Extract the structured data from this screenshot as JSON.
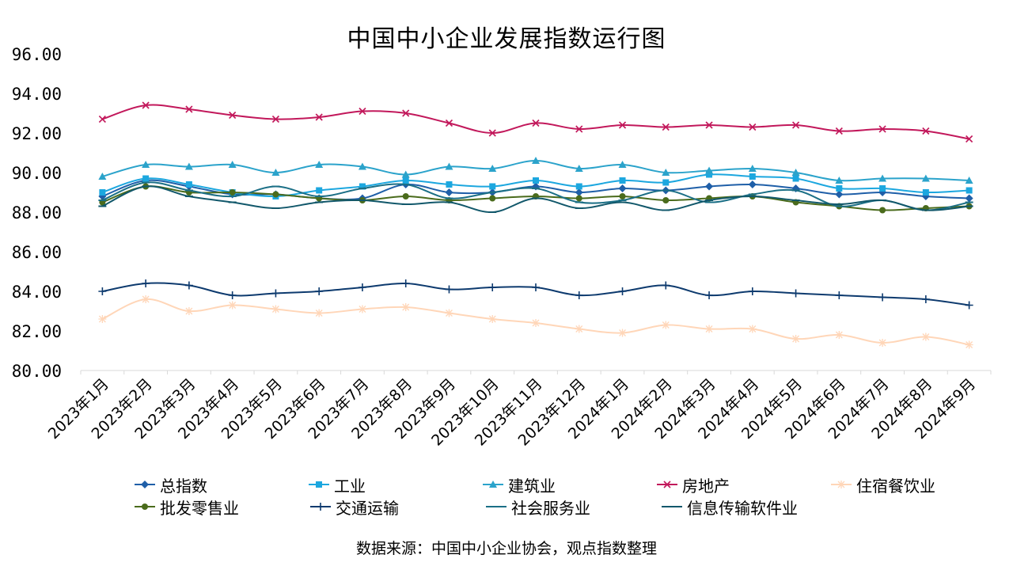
{
  "chart_data": {
    "type": "line",
    "title": "中国中小企业发展指数运行图",
    "source": "数据来源：中国中小企业协会，观点指数整理",
    "xlabel": "",
    "ylabel": "",
    "ylim": [
      80,
      96
    ],
    "yticks": [
      "80.00",
      "82.00",
      "84.00",
      "86.00",
      "88.00",
      "90.00",
      "92.00",
      "94.00",
      "96.00"
    ],
    "grid": false,
    "legend_position": "bottom",
    "categories": [
      "2023年1月",
      "2023年2月",
      "2023年3月",
      "2023年4月",
      "2023年5月",
      "2023年6月",
      "2023年7月",
      "2023年8月",
      "2023年9月",
      "2023年10月",
      "2023年11月",
      "2023年12月",
      "2024年1月",
      "2024年2月",
      "2024年3月",
      "2024年4月",
      "2024年5月",
      "2024年6月",
      "2024年7月",
      "2024年8月",
      "2024年9月"
    ],
    "series": [
      {
        "name": "总指数",
        "color": "#1f5fa8",
        "marker": "diamond",
        "values": [
          88.8,
          89.6,
          89.3,
          88.9,
          88.9,
          88.7,
          88.7,
          89.4,
          89.0,
          89.0,
          89.3,
          89.0,
          89.2,
          89.1,
          89.3,
          89.4,
          89.2,
          88.9,
          89.0,
          88.8,
          88.7
        ]
      },
      {
        "name": "工业",
        "color": "#1ca7df",
        "marker": "square",
        "values": [
          89.0,
          89.7,
          89.4,
          89.0,
          88.8,
          89.1,
          89.3,
          89.6,
          89.4,
          89.3,
          89.6,
          89.3,
          89.6,
          89.5,
          89.9,
          89.8,
          89.7,
          89.2,
          89.2,
          89.0,
          89.1
        ]
      },
      {
        "name": "建筑业",
        "color": "#2ba3cb",
        "marker": "triangle",
        "values": [
          89.8,
          90.4,
          90.3,
          90.4,
          90.0,
          90.4,
          90.3,
          89.9,
          90.3,
          90.2,
          90.6,
          90.2,
          90.4,
          90.0,
          90.1,
          90.2,
          90.0,
          89.6,
          89.7,
          89.7,
          89.6
        ]
      },
      {
        "name": "房地产",
        "color": "#c2185b",
        "marker": "x",
        "values": [
          92.7,
          93.4,
          93.2,
          92.9,
          92.7,
          92.8,
          93.1,
          93.0,
          92.5,
          92.0,
          92.5,
          92.2,
          92.4,
          92.3,
          92.4,
          92.3,
          92.4,
          92.1,
          92.2,
          92.1,
          91.7
        ]
      },
      {
        "name": "住宿餐饮业",
        "color": "#ffd6b8",
        "marker": "star",
        "values": [
          82.6,
          83.6,
          83.0,
          83.3,
          83.1,
          82.9,
          83.1,
          83.2,
          82.9,
          82.6,
          82.4,
          82.1,
          81.9,
          82.3,
          82.1,
          82.1,
          81.6,
          81.8,
          81.4,
          81.7,
          81.3
        ]
      },
      {
        "name": "批发零售业",
        "color": "#4a6b1c",
        "marker": "circle",
        "values": [
          88.5,
          89.3,
          89.0,
          89.0,
          88.9,
          88.7,
          88.6,
          88.8,
          88.6,
          88.7,
          88.8,
          88.7,
          88.8,
          88.6,
          88.7,
          88.8,
          88.5,
          88.3,
          88.1,
          88.2,
          88.3
        ]
      },
      {
        "name": "交通运输",
        "color": "#0d3a6e",
        "marker": "plus",
        "values": [
          84.0,
          84.4,
          84.3,
          83.8,
          83.9,
          84.0,
          84.2,
          84.4,
          84.1,
          84.2,
          84.2,
          83.8,
          84.0,
          84.3,
          83.8,
          84.0,
          83.9,
          83.8,
          83.7,
          83.6,
          83.3
        ]
      },
      {
        "name": "社会服务业",
        "color": "#1b6f86",
        "marker": "dash",
        "values": [
          88.6,
          89.5,
          89.1,
          88.8,
          89.3,
          88.8,
          89.2,
          89.4,
          88.7,
          89.0,
          89.2,
          88.5,
          88.6,
          89.1,
          88.5,
          88.9,
          89.1,
          88.3,
          88.6,
          88.1,
          88.5
        ]
      },
      {
        "name": "信息传输软件业",
        "color": "#12586b",
        "marker": "dash",
        "values": [
          88.3,
          89.3,
          88.8,
          88.5,
          88.2,
          88.5,
          88.6,
          88.4,
          88.5,
          88.0,
          88.7,
          88.2,
          88.5,
          88.1,
          88.6,
          88.8,
          88.6,
          88.4,
          88.6,
          88.1,
          88.3
        ]
      }
    ]
  }
}
